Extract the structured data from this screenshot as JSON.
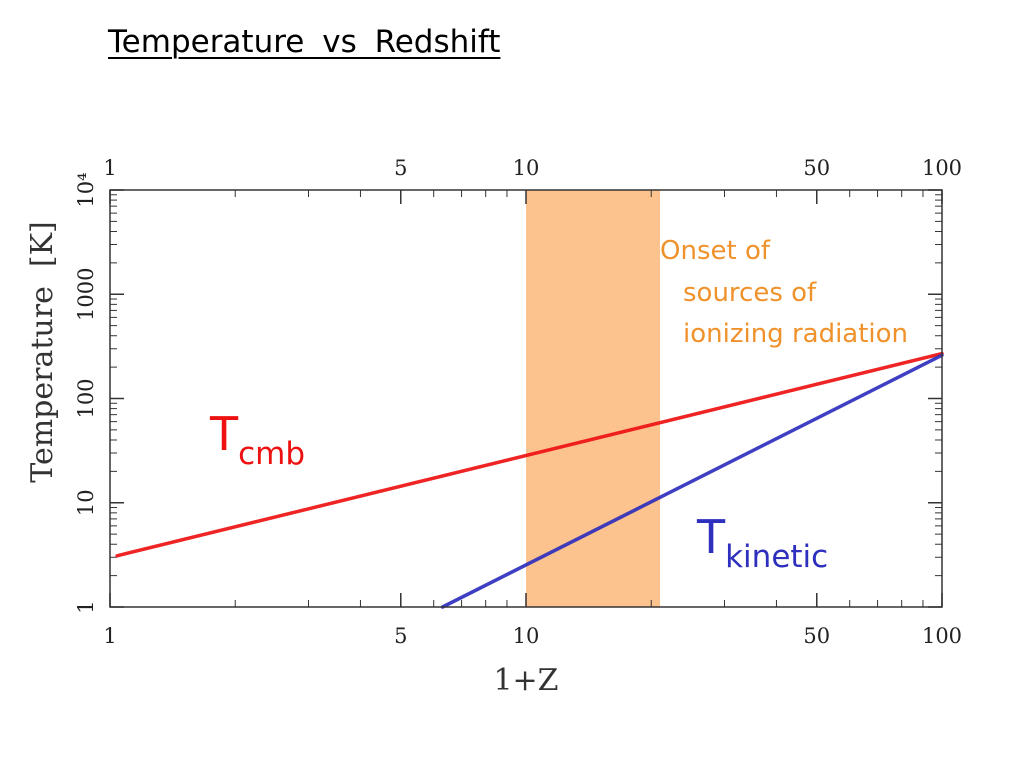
{
  "title": "Temperature  vs  Redshift",
  "colors": {
    "tcmb": "#ee1111",
    "tkinetic": "#2f2fbe",
    "band": "#fcc38e",
    "annotation": "#f0922c",
    "axis": "#333333"
  },
  "chart_data": {
    "type": "line",
    "xlabel": "1+Z",
    "ylabel": "Temperature  [K]",
    "xscale": "log",
    "yscale": "log",
    "xlim": [
      1,
      100
    ],
    "ylim": [
      1,
      10000
    ],
    "x_ticks_major": [
      1,
      5,
      10,
      50,
      100
    ],
    "x_tick_labels": [
      "1",
      "5",
      "10",
      "50",
      "100"
    ],
    "y_ticks_major": [
      1,
      10,
      100,
      1000,
      10000
    ],
    "y_tick_labels": [
      "1",
      "10",
      "100",
      "1000",
      "10⁴"
    ],
    "series": [
      {
        "name": "T",
        "subscript": "cmb",
        "x": [
          1.04,
          100
        ],
        "y": [
          3.1,
          270
        ]
      },
      {
        "name": "T",
        "subscript": "kinetic",
        "x": [
          6.3,
          100
        ],
        "y": [
          1,
          260
        ]
      }
    ],
    "shaded_band": {
      "x": [
        10,
        21
      ]
    },
    "annotations": [
      "Onset of",
      "sources of",
      "ionizing radiation"
    ]
  }
}
